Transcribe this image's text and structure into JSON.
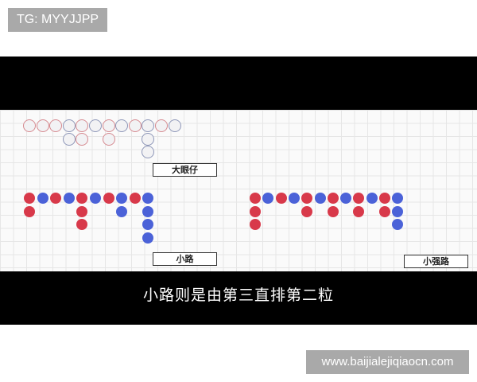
{
  "watermark_top": "TG: MYYJJPP",
  "watermark_bottom": "www.baijialejiqiaocn.com",
  "subtitle": "小路则是由第三直排第二粒",
  "colors": {
    "red": "#d8394a",
    "blue": "#4b62d8"
  },
  "roads": [
    {
      "id": "big-eye",
      "label": "大眼仔",
      "style": "hollow",
      "columns": [
        [
          "red"
        ],
        [
          "red"
        ],
        [
          "red"
        ],
        [
          "blue",
          "blue"
        ],
        [
          "red",
          "red"
        ],
        [
          "blue"
        ],
        [
          "red",
          "red"
        ],
        [
          "blue"
        ],
        [
          "red"
        ],
        [
          "blue",
          "blue",
          "blue"
        ],
        [
          "red"
        ],
        [
          "blue"
        ]
      ]
    },
    {
      "id": "small-road",
      "label": "小路",
      "style": "solid",
      "columns": [
        [
          "red",
          "red"
        ],
        [
          "blue"
        ],
        [
          "red"
        ],
        [
          "blue"
        ],
        [
          "red",
          "red",
          "red"
        ],
        [
          "blue"
        ],
        [
          "red"
        ],
        [
          "blue",
          "blue"
        ],
        [
          "red"
        ],
        [
          "blue",
          "blue",
          "blue",
          "blue"
        ]
      ]
    },
    {
      "id": "cockroach-road",
      "label": "小强路",
      "style": "solid",
      "columns": [
        [
          "red",
          "red",
          "red"
        ],
        [
          "blue"
        ],
        [
          "red"
        ],
        [
          "blue"
        ],
        [
          "red",
          "red"
        ],
        [
          "blue"
        ],
        [
          "red",
          "red"
        ],
        [
          "blue"
        ],
        [
          "red",
          "red"
        ],
        [
          "blue"
        ],
        [
          "red",
          "red"
        ],
        [
          "blue",
          "blue",
          "blue"
        ]
      ]
    }
  ]
}
